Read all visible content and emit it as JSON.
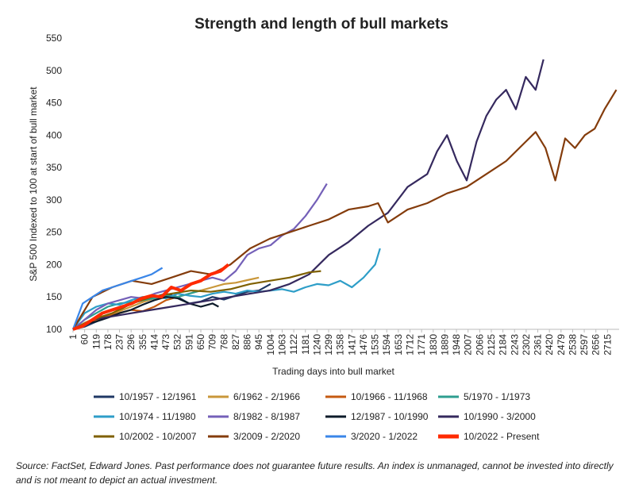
{
  "chart_data": {
    "type": "line",
    "title": "Strength and length of bull markets",
    "x_label": "Trading days into bull market",
    "y_label": "S&P 500 Indexed to 100 at start of bull market",
    "source": "Source: FactSet, Edward Jones. Past performance does not guarantee future results. An index is unmanaged, cannot be invested into directly and is not meant to depict an actual investment.",
    "xlim": [
      1,
      2774
    ],
    "xticks": [
      1,
      60,
      119,
      178,
      237,
      296,
      355,
      414,
      473,
      532,
      591,
      650,
      709,
      768,
      827,
      886,
      945,
      1004,
      1063,
      1122,
      1181,
      1240,
      1299,
      1358,
      1417,
      1476,
      1535,
      1594,
      1653,
      1712,
      1771,
      1830,
      1889,
      1948,
      2007,
      2066,
      2125,
      2184,
      2243,
      2302,
      2361,
      2420,
      2479,
      2538,
      2597,
      2656,
      2715
    ],
    "ylim": [
      100,
      550
    ],
    "yticks": [
      100,
      150,
      200,
      250,
      300,
      350,
      400,
      450,
      500,
      550
    ],
    "grid": false,
    "series": [
      {
        "name": "10/1957 - 12/1961",
        "color": "#1f3864",
        "x": [
          1,
          60,
          119,
          178,
          237,
          296,
          355,
          414,
          473,
          532,
          591,
          650,
          709,
          768,
          827,
          886,
          945,
          1004
        ],
        "values": [
          100,
          104,
          112,
          120,
          130,
          140,
          145,
          150,
          155,
          150,
          140,
          143,
          150,
          146,
          152,
          158,
          160,
          170
        ]
      },
      {
        "name": "6/1962 - 2/1966",
        "color": "#c9973a",
        "x": [
          1,
          60,
          119,
          178,
          237,
          296,
          355,
          414,
          473,
          532,
          591,
          650,
          709,
          768,
          827,
          886,
          945
        ],
        "values": [
          100,
          110,
          118,
          122,
          128,
          135,
          142,
          148,
          152,
          150,
          155,
          160,
          165,
          170,
          172,
          176,
          180
        ]
      },
      {
        "name": "10/1966 - 11/1968",
        "color": "#c55a11",
        "x": [
          1,
          60,
          119,
          178,
          237,
          296,
          355,
          414,
          473,
          532
        ],
        "values": [
          100,
          108,
          115,
          120,
          125,
          130,
          128,
          135,
          145,
          150
        ]
      },
      {
        "name": "5/1970 - 1/1973",
        "color": "#2e9e8f",
        "x": [
          1,
          60,
          119,
          178,
          237,
          296,
          355,
          414,
          473,
          532,
          591,
          650
        ],
        "values": [
          100,
          115,
          125,
          135,
          140,
          142,
          145,
          148,
          152,
          150,
          155,
          160
        ]
      },
      {
        "name": "10/1974 - 11/1980",
        "color": "#2e9ec8",
        "x": [
          1,
          60,
          119,
          178,
          237,
          296,
          355,
          414,
          473,
          532,
          591,
          650,
          709,
          768,
          827,
          886,
          945,
          1004,
          1063,
          1122,
          1181,
          1240,
          1299,
          1358,
          1417,
          1476,
          1535,
          1560
        ],
        "values": [
          100,
          125,
          135,
          140,
          138,
          145,
          150,
          150,
          148,
          155,
          152,
          150,
          155,
          158,
          155,
          160,
          158,
          160,
          162,
          158,
          165,
          170,
          168,
          175,
          165,
          180,
          200,
          225
        ]
      },
      {
        "name": "8/1982 - 8/1987",
        "color": "#7460b8",
        "x": [
          1,
          60,
          119,
          178,
          237,
          296,
          355,
          414,
          473,
          532,
          591,
          650,
          709,
          768,
          827,
          886,
          945,
          1004,
          1063,
          1122,
          1181,
          1240,
          1290
        ],
        "values": [
          100,
          115,
          130,
          140,
          145,
          150,
          148,
          155,
          160,
          165,
          170,
          175,
          180,
          175,
          190,
          215,
          225,
          230,
          245,
          255,
          275,
          300,
          325
        ]
      },
      {
        "name": "12/1987 - 10/1990",
        "color": "#0d1b2a",
        "x": [
          1,
          60,
          119,
          178,
          237,
          296,
          355,
          414,
          473,
          532,
          591,
          650,
          709,
          740
        ],
        "values": [
          100,
          108,
          112,
          118,
          125,
          130,
          138,
          145,
          150,
          148,
          140,
          135,
          140,
          135
        ]
      },
      {
        "name": "10/1990 - 3/2000",
        "color": "#35295e",
        "x": [
          1,
          100,
          200,
          300,
          400,
          500,
          600,
          700,
          800,
          900,
          1000,
          1100,
          1200,
          1300,
          1400,
          1500,
          1600,
          1700,
          1800,
          1850,
          1900,
          1950,
          2000,
          2050,
          2100,
          2150,
          2200,
          2250,
          2300,
          2350,
          2390
        ],
        "values": [
          100,
          115,
          120,
          125,
          130,
          135,
          140,
          145,
          150,
          155,
          160,
          170,
          185,
          215,
          235,
          260,
          280,
          320,
          340,
          375,
          400,
          360,
          330,
          390,
          430,
          455,
          470,
          440,
          490,
          470,
          517
        ]
      },
      {
        "name": "10/2002 - 10/2007",
        "color": "#7f6000",
        "x": [
          1,
          100,
          200,
          300,
          400,
          500,
          600,
          700,
          800,
          900,
          1000,
          1100,
          1200,
          1260
        ],
        "values": [
          100,
          115,
          125,
          140,
          150,
          155,
          160,
          158,
          162,
          170,
          175,
          180,
          188,
          190
        ]
      },
      {
        "name": "3/2009 - 2/2020",
        "color": "#843c0c",
        "x": [
          1,
          100,
          200,
          300,
          400,
          500,
          600,
          700,
          800,
          900,
          1000,
          1100,
          1200,
          1300,
          1400,
          1500,
          1550,
          1600,
          1700,
          1800,
          1900,
          2000,
          2100,
          2200,
          2300,
          2350,
          2400,
          2450,
          2500,
          2550,
          2600,
          2650,
          2700,
          2760
        ],
        "values": [
          100,
          150,
          165,
          175,
          170,
          180,
          190,
          185,
          200,
          225,
          240,
          250,
          260,
          270,
          285,
          290,
          295,
          265,
          285,
          295,
          310,
          320,
          340,
          360,
          390,
          405,
          380,
          330,
          395,
          380,
          400,
          410,
          440,
          470
        ]
      },
      {
        "name": "3/2020 - 1/2022",
        "color": "#3a86e8",
        "x": [
          1,
          50,
          100,
          150,
          200,
          250,
          300,
          350,
          400,
          455
        ],
        "values": [
          100,
          140,
          150,
          160,
          165,
          170,
          175,
          180,
          185,
          195
        ]
      },
      {
        "name": "10/2022 - Present",
        "color": "#ff2a00",
        "x": [
          1,
          50,
          100,
          150,
          200,
          250,
          300,
          350,
          400,
          450,
          500,
          550,
          600,
          650,
          700,
          750,
          790
        ],
        "values": [
          100,
          105,
          115,
          125,
          130,
          135,
          140,
          148,
          152,
          150,
          165,
          160,
          170,
          175,
          185,
          190,
          200
        ]
      }
    ]
  }
}
